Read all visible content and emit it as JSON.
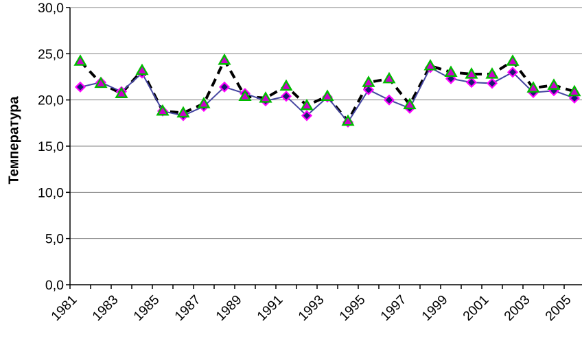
{
  "chart_data": {
    "type": "line",
    "title": "",
    "xlabel": "",
    "ylabel": "Температура",
    "categories": [
      1981,
      1982,
      1983,
      1984,
      1985,
      1986,
      1987,
      1988,
      1989,
      1990,
      1991,
      1992,
      1993,
      1994,
      1995,
      1996,
      1997,
      1998,
      1999,
      2000,
      2001,
      2002,
      2003,
      2004,
      2005
    ],
    "x_tick_labels": [
      "1981",
      "1983",
      "1985",
      "1987",
      "1989",
      "1991",
      "1993",
      "1995",
      "1997",
      "1999",
      "2001",
      "2003",
      "2005"
    ],
    "y_ticks": [
      0,
      5,
      10,
      15,
      20,
      25,
      30
    ],
    "y_tick_labels": [
      "0,0",
      "5,0",
      "10,0",
      "15,0",
      "20,0",
      "25,0",
      "30,0"
    ],
    "ylim": [
      0,
      30
    ],
    "grid": true,
    "legend_position": "none",
    "axis_color": "#000000",
    "grid_color": "#808080",
    "series": [
      {
        "name": "dashed_triangle_series",
        "line_style": "dashed",
        "line_color": "#000000",
        "line_width": 4,
        "marker": "triangle",
        "marker_stroke": "#00BB00",
        "marker_fill": "#CC00CC",
        "values": [
          24.2,
          21.8,
          20.7,
          23.2,
          18.8,
          18.6,
          19.6,
          24.3,
          20.4,
          20.2,
          21.5,
          19.4,
          20.4,
          17.7,
          21.9,
          22.3,
          19.5,
          23.7,
          23.0,
          22.8,
          22.8,
          24.2,
          21.3,
          21.6,
          20.9
        ]
      },
      {
        "name": "solid_diamond_series",
        "line_style": "solid",
        "line_color": "#4545A1",
        "line_width": 2,
        "marker": "diamond",
        "marker_stroke": "#FF00FF",
        "marker_fill": "#1A1A70",
        "values": [
          21.4,
          21.9,
          20.9,
          22.9,
          18.8,
          18.3,
          19.3,
          21.4,
          20.7,
          19.9,
          20.4,
          18.3,
          20.3,
          17.6,
          21.1,
          20.0,
          19.1,
          23.5,
          22.3,
          21.9,
          21.8,
          23.0,
          20.8,
          21.0,
          20.2
        ]
      }
    ]
  }
}
